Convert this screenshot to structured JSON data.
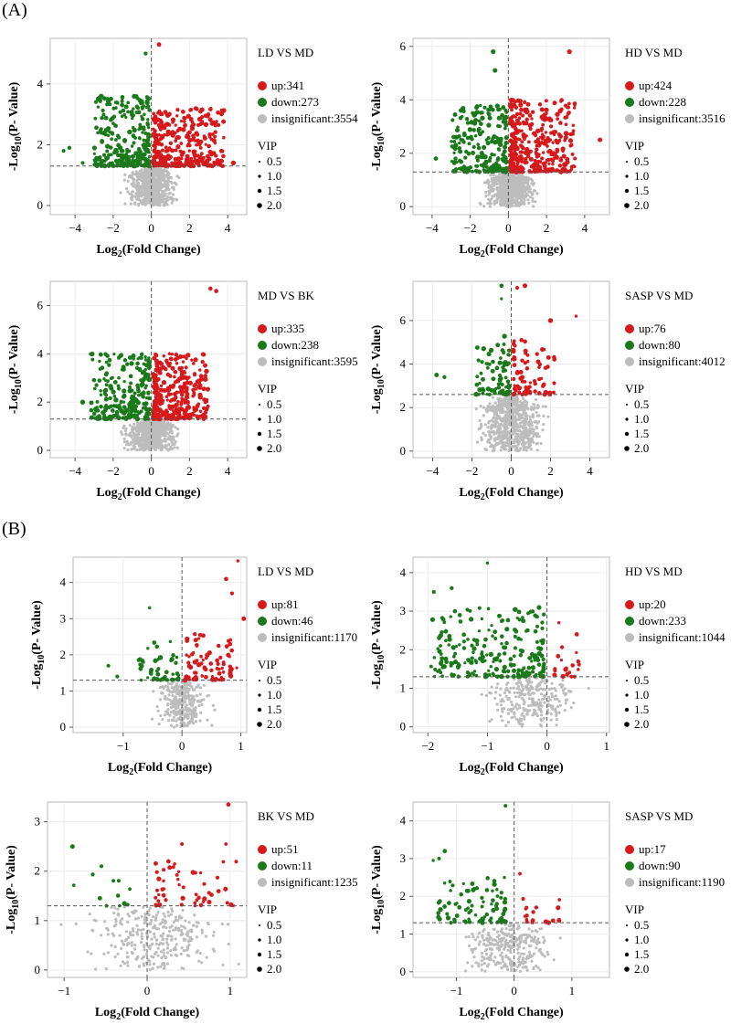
{
  "sections": [
    {
      "label": "(A)"
    },
    {
      "label": "(B)"
    }
  ],
  "colors": {
    "up": "#d7191c",
    "down": "#1a7a1a",
    "insignificant": "#bdbdbd",
    "line": "#555555",
    "frame": "#bbbbbb",
    "grid": "#ececec"
  },
  "common": {
    "xlabel": "Log2(Fold Change)",
    "ylabel": "-Log10(P- Value)",
    "vip_title": "VIP",
    "vip_sizes": [
      "0.5",
      "1.0",
      "1.5",
      "2.0"
    ]
  },
  "chart_data": [
    {
      "type": "scatter",
      "section": "A",
      "title": "LD VS MD",
      "xlim": [
        -5.3,
        5.0
      ],
      "ylim": [
        -0.3,
        5.5
      ],
      "xticks": [
        -4,
        -2,
        0,
        2,
        4
      ],
      "yticks": [
        0,
        2,
        4
      ],
      "threshold_y": 1.3,
      "threshold_x": 0,
      "xlabel": "Log2(Fold Change)",
      "ylabel": "-Log10(P- Value)",
      "legend": [
        {
          "key": "up",
          "label": "up:341"
        },
        {
          "key": "down",
          "label": "down:273"
        },
        {
          "key": "insignificant",
          "label": "insignificant:3554"
        }
      ],
      "counts": {
        "up": 341,
        "down": 273,
        "insignificant": 3554
      },
      "spread": {
        "up": [
          0.1,
          3.8,
          1.3,
          3.2
        ],
        "down": [
          -3.0,
          -0.1,
          1.3,
          3.6
        ],
        "insig": [
          -1.3,
          1.4,
          0,
          1.3
        ]
      },
      "extra": {
        "up": [
          [
            0.4,
            5.3
          ],
          [
            4.3,
            1.4
          ]
        ],
        "down": [
          [
            -0.3,
            5.0
          ],
          [
            -4.6,
            1.8
          ],
          [
            -4.3,
            1.9
          ],
          [
            -3.6,
            1.4
          ]
        ]
      }
    },
    {
      "type": "scatter",
      "section": "A",
      "title": "HD VS MD",
      "xlim": [
        -5.0,
        5.3
      ],
      "ylim": [
        -0.3,
        6.3
      ],
      "xticks": [
        -4,
        -2,
        0,
        2,
        4
      ],
      "yticks": [
        0,
        2,
        4,
        6
      ],
      "threshold_y": 1.3,
      "threshold_x": 0,
      "xlabel": "Log2(Fold Change)",
      "ylabel": "-Log10(P- Value)",
      "legend": [
        {
          "key": "up",
          "label": "up:424"
        },
        {
          "key": "down",
          "label": "down:228"
        },
        {
          "key": "insignificant",
          "label": "insignificant:3516"
        }
      ],
      "counts": {
        "up": 424,
        "down": 228,
        "insignificant": 3516
      },
      "spread": {
        "up": [
          0.1,
          3.5,
          1.3,
          4.0
        ],
        "down": [
          -3.0,
          -0.1,
          1.3,
          3.8
        ],
        "insig": [
          -1.3,
          1.5,
          0,
          1.3
        ]
      },
      "extra": {
        "up": [
          [
            3.2,
            5.8
          ],
          [
            4.8,
            2.5
          ]
        ],
        "down": [
          [
            -0.8,
            5.8
          ],
          [
            -0.7,
            5.1
          ],
          [
            -3.8,
            1.8
          ]
        ]
      }
    },
    {
      "type": "scatter",
      "section": "A",
      "title": "MD VS BK",
      "xlim": [
        -5.3,
        5.0
      ],
      "ylim": [
        -0.3,
        7.0
      ],
      "xticks": [
        -4,
        -2,
        0,
        2,
        4
      ],
      "yticks": [
        0,
        2,
        4,
        6
      ],
      "threshold_y": 1.3,
      "threshold_x": 0,
      "xlabel": "Log2(Fold Change)",
      "ylabel": "-Log10(P- Value)",
      "legend": [
        {
          "key": "up",
          "label": "up:335"
        },
        {
          "key": "down",
          "label": "down:238"
        },
        {
          "key": "insignificant",
          "label": "insignificant:3595"
        }
      ],
      "counts": {
        "up": 335,
        "down": 238,
        "insignificant": 3595
      },
      "spread": {
        "up": [
          0.1,
          3.0,
          1.3,
          4.0
        ],
        "down": [
          -3.2,
          -0.1,
          1.3,
          4.0
        ],
        "insig": [
          -1.4,
          1.5,
          0,
          1.3
        ]
      },
      "extra": {
        "up": [
          [
            3.1,
            6.7
          ],
          [
            3.4,
            6.6
          ]
        ],
        "down": [
          [
            -3.6,
            2.0
          ]
        ]
      }
    },
    {
      "type": "scatter",
      "section": "A",
      "title": "SASP VS MD",
      "xlim": [
        -5.0,
        5.0
      ],
      "ylim": [
        -0.3,
        7.8
      ],
      "xticks": [
        -4,
        -2,
        0,
        2,
        4
      ],
      "yticks": [
        0,
        2,
        4,
        6
      ],
      "threshold_y": 2.6,
      "threshold_x": 0,
      "xlabel": "Log2(Fold Change)",
      "ylabel": "-Log10(P- Value)",
      "legend": [
        {
          "key": "up",
          "label": "up:76"
        },
        {
          "key": "down",
          "label": "down:80"
        },
        {
          "key": "insignificant",
          "label": "insignificant:4012"
        }
      ],
      "counts": {
        "up": 76,
        "down": 80,
        "insignificant": 4012
      },
      "spread": {
        "up": [
          0.1,
          2.2,
          2.6,
          5.2
        ],
        "down": [
          -1.8,
          -0.1,
          2.6,
          5.3
        ],
        "insig": [
          -1.6,
          1.7,
          0,
          2.6
        ]
      },
      "extra": {
        "up": [
          [
            0.3,
            7.5
          ],
          [
            0.7,
            7.6
          ],
          [
            3.3,
            6.2
          ],
          [
            2.0,
            6.0
          ]
        ],
        "down": [
          [
            -0.5,
            7.6
          ],
          [
            -3.8,
            3.5
          ],
          [
            -3.4,
            3.4
          ],
          [
            -0.5,
            7.0
          ]
        ]
      }
    },
    {
      "type": "scatter",
      "section": "B",
      "title": "LD VS MD",
      "xlim": [
        -1.85,
        1.1
      ],
      "ylim": [
        -0.15,
        4.7
      ],
      "xticks": [
        -1,
        0,
        1
      ],
      "yticks": [
        0,
        1,
        2,
        3,
        4
      ],
      "threshold_y": 1.3,
      "threshold_x": 0,
      "xlabel": "Log2(Fold Change)",
      "ylabel": "-Log10(P- Value)",
      "legend": [
        {
          "key": "up",
          "label": "up:81"
        },
        {
          "key": "down",
          "label": "down:46"
        },
        {
          "key": "insignificant",
          "label": "insignificant:1170"
        }
      ],
      "counts": {
        "up": 81,
        "down": 46,
        "insignificant": 1170
      },
      "spread": {
        "up": [
          0.05,
          0.95,
          1.3,
          2.6
        ],
        "down": [
          -0.75,
          -0.05,
          1.3,
          2.4
        ],
        "insig": [
          -0.45,
          0.5,
          0,
          1.3
        ]
      },
      "extra": {
        "up": [
          [
            0.95,
            4.6
          ],
          [
            0.75,
            4.1
          ],
          [
            0.85,
            3.7
          ],
          [
            1.05,
            3.0
          ]
        ],
        "down": [
          [
            -0.55,
            3.3
          ],
          [
            -1.25,
            1.7
          ],
          [
            -1.1,
            1.4
          ]
        ]
      }
    },
    {
      "type": "scatter",
      "section": "B",
      "title": "HD VS MD",
      "xlim": [
        -2.25,
        1.05
      ],
      "ylim": [
        -0.15,
        4.4
      ],
      "xticks": [
        -2,
        -1,
        0,
        1
      ],
      "yticks": [
        0,
        1,
        2,
        3,
        4
      ],
      "threshold_y": 1.3,
      "threshold_x": 0,
      "xlabel": "Log2(Fold Change)",
      "ylabel": "-Log10(P- Value)",
      "legend": [
        {
          "key": "up",
          "label": "up:20"
        },
        {
          "key": "down",
          "label": "down:233"
        },
        {
          "key": "insignificant",
          "label": "insignificant:1044"
        }
      ],
      "counts": {
        "up": 20,
        "down": 233,
        "insignificant": 1044
      },
      "spread": {
        "up": [
          0.1,
          0.55,
          1.3,
          2.1
        ],
        "down": [
          -1.95,
          -0.05,
          1.3,
          3.1
        ],
        "insig": [
          -1.1,
          0.6,
          0,
          1.3
        ]
      },
      "extra": {
        "up": [
          [
            0.2,
            2.7
          ],
          [
            0.5,
            2.4
          ]
        ],
        "down": [
          [
            -1.0,
            4.25
          ],
          [
            -1.9,
            3.5
          ],
          [
            -1.6,
            3.6
          ]
        ]
      }
    },
    {
      "type": "scatter",
      "section": "B",
      "title": "BK VS MD",
      "xlim": [
        -1.2,
        1.2
      ],
      "ylim": [
        -0.15,
        3.4
      ],
      "xticks": [
        -1,
        0,
        1
      ],
      "yticks": [
        0,
        1,
        2,
        3
      ],
      "threshold_y": 1.3,
      "threshold_x": 0,
      "xlabel": "Log2(Fold Change)",
      "ylabel": "-Log10(P- Value)",
      "legend": [
        {
          "key": "up",
          "label": "up:51"
        },
        {
          "key": "down",
          "label": "down:11"
        },
        {
          "key": "insignificant",
          "label": "insignificant:1235"
        }
      ],
      "counts": {
        "up": 51,
        "down": 11,
        "insignificant": 1235
      },
      "spread": {
        "up": [
          0.1,
          1.1,
          1.3,
          2.2
        ],
        "down": [
          -0.95,
          -0.2,
          1.3,
          2.0
        ],
        "insig": [
          -0.9,
          1.0,
          0,
          1.3
        ]
      },
      "extra": {
        "up": [
          [
            0.98,
            3.35
          ],
          [
            0.42,
            2.55
          ],
          [
            0.95,
            2.55
          ]
        ],
        "down": [
          [
            -0.9,
            2.5
          ],
          [
            -0.55,
            2.1
          ]
        ]
      }
    },
    {
      "type": "scatter",
      "section": "B",
      "title": "SASP VS MD",
      "xlim": [
        -1.75,
        1.65
      ],
      "ylim": [
        -0.15,
        4.5
      ],
      "xticks": [
        -1,
        0,
        1
      ],
      "yticks": [
        0,
        1,
        2,
        3,
        4
      ],
      "threshold_y": 1.3,
      "threshold_x": 0,
      "xlabel": "Log2(Fold Change)",
      "ylabel": "-Log10(P- Value)",
      "legend": [
        {
          "key": "up",
          "label": "up:17"
        },
        {
          "key": "down",
          "label": "down:90"
        },
        {
          "key": "insignificant",
          "label": "insignificant:1190"
        }
      ],
      "counts": {
        "up": 17,
        "down": 90,
        "insignificant": 1190
      },
      "spread": {
        "up": [
          0.1,
          0.9,
          1.3,
          2.0
        ],
        "down": [
          -1.35,
          -0.15,
          1.3,
          2.5
        ],
        "insig": [
          -0.9,
          0.7,
          0,
          1.3
        ]
      },
      "extra": {
        "up": [
          [
            0.1,
            2.6
          ]
        ],
        "down": [
          [
            -0.15,
            4.4
          ],
          [
            -1.2,
            3.2
          ],
          [
            -1.3,
            3.0
          ],
          [
            -1.4,
            2.95
          ]
        ]
      }
    }
  ]
}
